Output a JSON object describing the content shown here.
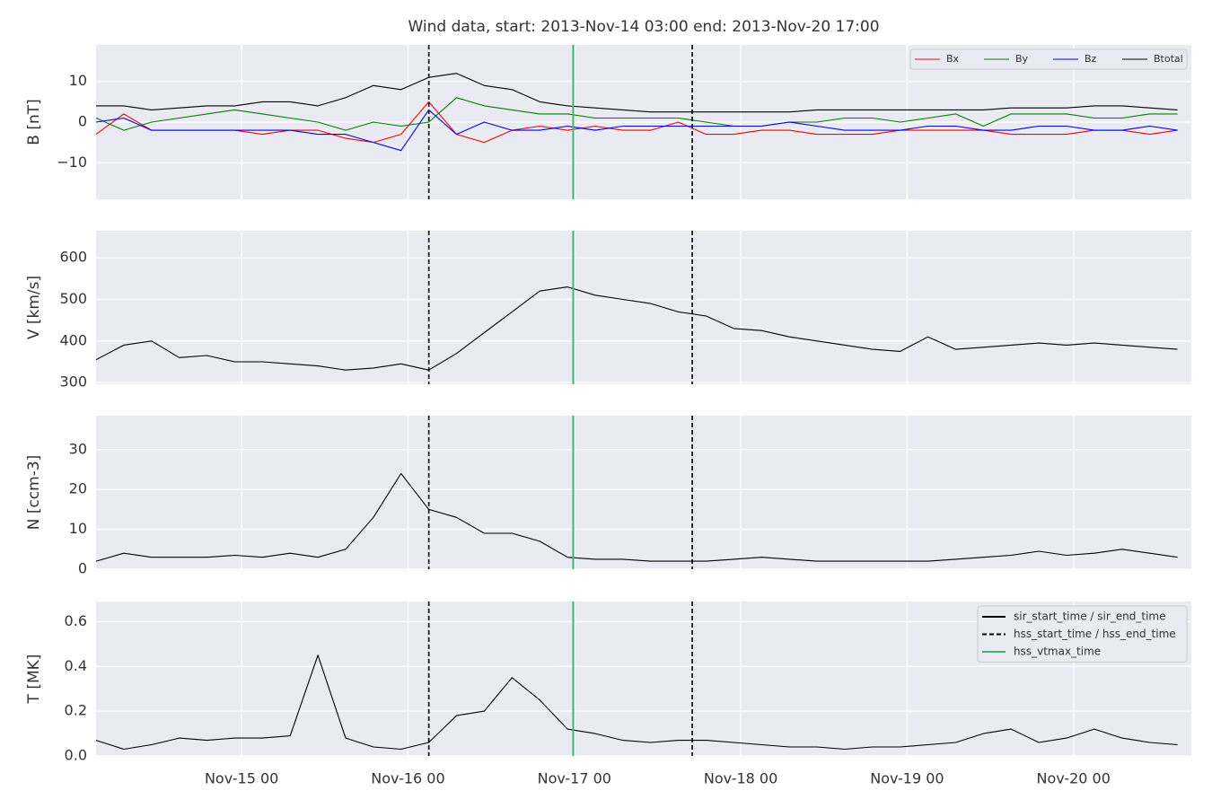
{
  "chart_data": [
    {
      "type": "line",
      "title": "Wind data, start: 2013-Nov-14 03:00  end: 2013-Nov-20 17:00",
      "ylabel": "B [nT]",
      "x": [
        "2013-11-14 03:00",
        "2013-11-14 07:00",
        "2013-11-14 11:00",
        "2013-11-14 15:00",
        "2013-11-14 19:00",
        "2013-11-14 23:00",
        "2013-11-15 03:00",
        "2013-11-15 07:00",
        "2013-11-15 11:00",
        "2013-11-15 15:00",
        "2013-11-15 19:00",
        "2013-11-15 23:00",
        "2013-11-16 03:00",
        "2013-11-16 07:00",
        "2013-11-16 11:00",
        "2013-11-16 15:00",
        "2013-11-16 19:00",
        "2013-11-16 23:00",
        "2013-11-17 03:00",
        "2013-11-17 07:00",
        "2013-11-17 11:00",
        "2013-11-17 15:00",
        "2013-11-17 19:00",
        "2013-11-17 23:00",
        "2013-11-18 03:00",
        "2013-11-18 07:00",
        "2013-11-18 11:00",
        "2013-11-18 15:00",
        "2013-11-18 19:00",
        "2013-11-18 23:00",
        "2013-11-19 03:00",
        "2013-11-19 07:00",
        "2013-11-19 11:00",
        "2013-11-19 15:00",
        "2013-11-19 19:00",
        "2013-11-19 23:00",
        "2013-11-20 03:00",
        "2013-11-20 07:00",
        "2013-11-20 11:00",
        "2013-11-20 15:00"
      ],
      "xlim": [
        "2013-11-14 03:00",
        "2013-11-20 17:00"
      ],
      "xticks": [
        "2013-11-15 00:00",
        "2013-11-16 00:00",
        "2013-11-17 00:00",
        "2013-11-18 00:00",
        "2013-11-19 00:00",
        "2013-11-20 00:00"
      ],
      "ylim": [
        -19,
        19
      ],
      "yticks": [
        {
          "value": -10,
          "label": "−10"
        },
        0,
        10
      ],
      "grid": true,
      "legend": "upper right",
      "series": [
        {
          "name": "Bx",
          "color": "#ff0000",
          "values": [
            -3,
            2,
            -2,
            -2,
            -2,
            -2,
            -3,
            -2,
            -2,
            -4,
            -5,
            -3,
            5,
            -3,
            -5,
            -2,
            -1,
            -2,
            -1,
            -2,
            -2,
            0,
            -3,
            -3,
            -2,
            -2,
            -3,
            -3,
            -3,
            -2,
            -2,
            -2,
            -2,
            -3,
            -3,
            -3,
            -2,
            -2,
            -3,
            -2
          ]
        },
        {
          "name": "By",
          "color": "#008000",
          "values": [
            1,
            -2,
            0,
            1,
            2,
            3,
            2,
            1,
            0,
            -2,
            0,
            -1,
            0,
            6,
            4,
            3,
            2,
            2,
            1,
            1,
            1,
            1,
            0,
            -1,
            -1,
            0,
            0,
            1,
            1,
            0,
            1,
            2,
            -1,
            2,
            2,
            2,
            1,
            1,
            2,
            2
          ]
        },
        {
          "name": "Bz",
          "color": "#0000ff",
          "values": [
            0,
            1,
            -2,
            -2,
            -2,
            -2,
            -2,
            -2,
            -3,
            -3,
            -5,
            -7,
            3,
            -3,
            0,
            -2,
            -2,
            -1,
            -2,
            -1,
            -1,
            -1,
            -1,
            -1,
            -1,
            0,
            -1,
            -2,
            -2,
            -2,
            -1,
            -1,
            -2,
            -2,
            -1,
            -1,
            -2,
            -2,
            -1,
            -2
          ]
        },
        {
          "name": "Btotal",
          "color": "#000000",
          "values": [
            4,
            4,
            3,
            3.5,
            4,
            4,
            5,
            5,
            4,
            6,
            9,
            8,
            11,
            12,
            9,
            8,
            5,
            4,
            3.5,
            3,
            2.5,
            2.5,
            2.5,
            2.5,
            2.5,
            2.5,
            3,
            3,
            3,
            3,
            3,
            3,
            3,
            3.5,
            3.5,
            3.5,
            4,
            4,
            3.5,
            3
          ]
        }
      ],
      "markers": [
        {
          "color": "#000000",
          "dash": true,
          "x": [
            "2013-11-16 03:00",
            "2013-11-17 17:00"
          ]
        },
        {
          "color": "#3cb371",
          "dash": false,
          "x": [
            "2013-11-16 23:50"
          ]
        }
      ]
    },
    {
      "type": "line",
      "ylabel": "V [km/s]",
      "x": [
        "2013-11-14 03:00",
        "2013-11-14 07:00",
        "2013-11-14 11:00",
        "2013-11-14 15:00",
        "2013-11-14 19:00",
        "2013-11-14 23:00",
        "2013-11-15 03:00",
        "2013-11-15 07:00",
        "2013-11-15 11:00",
        "2013-11-15 15:00",
        "2013-11-15 19:00",
        "2013-11-15 23:00",
        "2013-11-16 03:00",
        "2013-11-16 07:00",
        "2013-11-16 11:00",
        "2013-11-16 15:00",
        "2013-11-16 19:00",
        "2013-11-16 23:00",
        "2013-11-17 03:00",
        "2013-11-17 07:00",
        "2013-11-17 11:00",
        "2013-11-17 15:00",
        "2013-11-17 19:00",
        "2013-11-17 23:00",
        "2013-11-18 03:00",
        "2013-11-18 07:00",
        "2013-11-18 11:00",
        "2013-11-18 15:00",
        "2013-11-18 19:00",
        "2013-11-18 23:00",
        "2013-11-19 03:00",
        "2013-11-19 07:00",
        "2013-11-19 11:00",
        "2013-11-19 15:00",
        "2013-11-19 19:00",
        "2013-11-19 23:00",
        "2013-11-20 03:00",
        "2013-11-20 07:00",
        "2013-11-20 11:00",
        "2013-11-20 15:00"
      ],
      "xlim": [
        "2013-11-14 03:00",
        "2013-11-20 17:00"
      ],
      "xticks": [
        "2013-11-15 00:00",
        "2013-11-16 00:00",
        "2013-11-17 00:00",
        "2013-11-18 00:00",
        "2013-11-19 00:00",
        "2013-11-20 00:00"
      ],
      "ylim": [
        296,
        665
      ],
      "yticks": [
        300,
        400,
        500,
        600
      ],
      "grid": true,
      "series": [
        {
          "color": "#000000",
          "values": [
            355,
            390,
            400,
            360,
            365,
            350,
            350,
            345,
            340,
            330,
            335,
            345,
            330,
            370,
            420,
            470,
            520,
            530,
            510,
            500,
            490,
            470,
            460,
            430,
            425,
            410,
            400,
            390,
            380,
            375,
            410,
            380,
            385,
            390,
            395,
            390,
            395,
            390,
            385,
            380
          ]
        }
      ],
      "markers": [
        {
          "color": "#000000",
          "dash": true,
          "x": [
            "2013-11-16 03:00",
            "2013-11-17 17:00"
          ]
        },
        {
          "color": "#3cb371",
          "dash": false,
          "x": [
            "2013-11-16 23:50"
          ]
        }
      ]
    },
    {
      "type": "line",
      "ylabel": "N [ccm-3]",
      "x": [
        "2013-11-14 03:00",
        "2013-11-14 07:00",
        "2013-11-14 11:00",
        "2013-11-14 15:00",
        "2013-11-14 19:00",
        "2013-11-14 23:00",
        "2013-11-15 03:00",
        "2013-11-15 07:00",
        "2013-11-15 11:00",
        "2013-11-15 15:00",
        "2013-11-15 19:00",
        "2013-11-15 23:00",
        "2013-11-16 03:00",
        "2013-11-16 07:00",
        "2013-11-16 11:00",
        "2013-11-16 15:00",
        "2013-11-16 19:00",
        "2013-11-16 23:00",
        "2013-11-17 03:00",
        "2013-11-17 07:00",
        "2013-11-17 11:00",
        "2013-11-17 15:00",
        "2013-11-17 19:00",
        "2013-11-17 23:00",
        "2013-11-18 03:00",
        "2013-11-18 07:00",
        "2013-11-18 11:00",
        "2013-11-18 15:00",
        "2013-11-18 19:00",
        "2013-11-18 23:00",
        "2013-11-19 03:00",
        "2013-11-19 07:00",
        "2013-11-19 11:00",
        "2013-11-19 15:00",
        "2013-11-19 19:00",
        "2013-11-19 23:00",
        "2013-11-20 03:00",
        "2013-11-20 07:00",
        "2013-11-20 11:00",
        "2013-11-20 15:00"
      ],
      "xlim": [
        "2013-11-14 03:00",
        "2013-11-20 17:00"
      ],
      "xticks": [
        "2013-11-15 00:00",
        "2013-11-16 00:00",
        "2013-11-17 00:00",
        "2013-11-18 00:00",
        "2013-11-19 00:00",
        "2013-11-20 00:00"
      ],
      "ylim": [
        0,
        38.5
      ],
      "yticks": [
        0,
        10,
        20,
        30
      ],
      "grid": true,
      "series": [
        {
          "color": "#000000",
          "values": [
            2,
            4,
            3,
            3,
            3,
            3.5,
            3,
            4,
            3,
            5,
            13,
            24,
            15,
            13,
            9,
            9,
            7,
            3,
            2.5,
            2.5,
            2,
            2,
            2,
            2.5,
            3,
            2.5,
            2,
            2,
            2,
            2,
            2,
            2.5,
            3,
            3.5,
            4.5,
            3.5,
            4,
            5,
            4,
            3
          ]
        }
      ],
      "markers": [
        {
          "color": "#000000",
          "dash": true,
          "x": [
            "2013-11-16 03:00",
            "2013-11-17 17:00"
          ]
        },
        {
          "color": "#3cb371",
          "dash": false,
          "x": [
            "2013-11-16 23:50"
          ]
        }
      ]
    },
    {
      "type": "line",
      "ylabel": "T [MK]",
      "x": [
        "2013-11-14 03:00",
        "2013-11-14 07:00",
        "2013-11-14 11:00",
        "2013-11-14 15:00",
        "2013-11-14 19:00",
        "2013-11-14 23:00",
        "2013-11-15 03:00",
        "2013-11-15 07:00",
        "2013-11-15 11:00",
        "2013-11-15 15:00",
        "2013-11-15 19:00",
        "2013-11-15 23:00",
        "2013-11-16 03:00",
        "2013-11-16 07:00",
        "2013-11-16 11:00",
        "2013-11-16 15:00",
        "2013-11-16 19:00",
        "2013-11-16 23:00",
        "2013-11-17 03:00",
        "2013-11-17 07:00",
        "2013-11-17 11:00",
        "2013-11-17 15:00",
        "2013-11-17 19:00",
        "2013-11-17 23:00",
        "2013-11-18 03:00",
        "2013-11-18 07:00",
        "2013-11-18 11:00",
        "2013-11-18 15:00",
        "2013-11-18 19:00",
        "2013-11-18 23:00",
        "2013-11-19 03:00",
        "2013-11-19 07:00",
        "2013-11-19 11:00",
        "2013-11-19 15:00",
        "2013-11-19 19:00",
        "2013-11-19 23:00",
        "2013-11-20 03:00",
        "2013-11-20 07:00",
        "2013-11-20 11:00",
        "2013-11-20 15:00"
      ],
      "xlim": [
        "2013-11-14 03:00",
        "2013-11-20 17:00"
      ],
      "xticks": [
        {
          "value": "2013-11-15 00:00",
          "label": "Nov-15 00"
        },
        {
          "value": "2013-11-16 00:00",
          "label": "Nov-16 00"
        },
        {
          "value": "2013-11-17 00:00",
          "label": "Nov-17 00"
        },
        {
          "value": "2013-11-18 00:00",
          "label": "Nov-18 00"
        },
        {
          "value": "2013-11-19 00:00",
          "label": "Nov-19 00"
        },
        {
          "value": "2013-11-20 00:00",
          "label": "Nov-20 00"
        }
      ],
      "ylim": [
        0,
        0.69
      ],
      "yticks": [
        {
          "value": 0,
          "label": "0.0"
        },
        0.2,
        0.4,
        0.6
      ],
      "grid": true,
      "legend": "upper right",
      "series": [
        {
          "color": "#000000",
          "values": [
            0.07,
            0.03,
            0.05,
            0.08,
            0.07,
            0.08,
            0.08,
            0.09,
            0.45,
            0.08,
            0.04,
            0.03,
            0.06,
            0.18,
            0.2,
            0.35,
            0.25,
            0.12,
            0.1,
            0.07,
            0.06,
            0.07,
            0.07,
            0.06,
            0.05,
            0.04,
            0.04,
            0.03,
            0.04,
            0.04,
            0.05,
            0.06,
            0.1,
            0.12,
            0.06,
            0.08,
            0.12,
            0.08,
            0.06,
            0.05
          ]
        }
      ],
      "markers": [
        {
          "name": "sir_start_time / sir_end_time",
          "color": "#000000",
          "dash": false,
          "x": []
        },
        {
          "name": "hss_start_time / hss_end_time",
          "color": "#000000",
          "dash": true,
          "x": [
            "2013-11-16 03:00",
            "2013-11-17 17:00"
          ]
        },
        {
          "name": "hss_vtmax_time",
          "color": "#3cb371",
          "dash": false,
          "x": [
            "2013-11-16 23:50"
          ]
        }
      ]
    }
  ]
}
